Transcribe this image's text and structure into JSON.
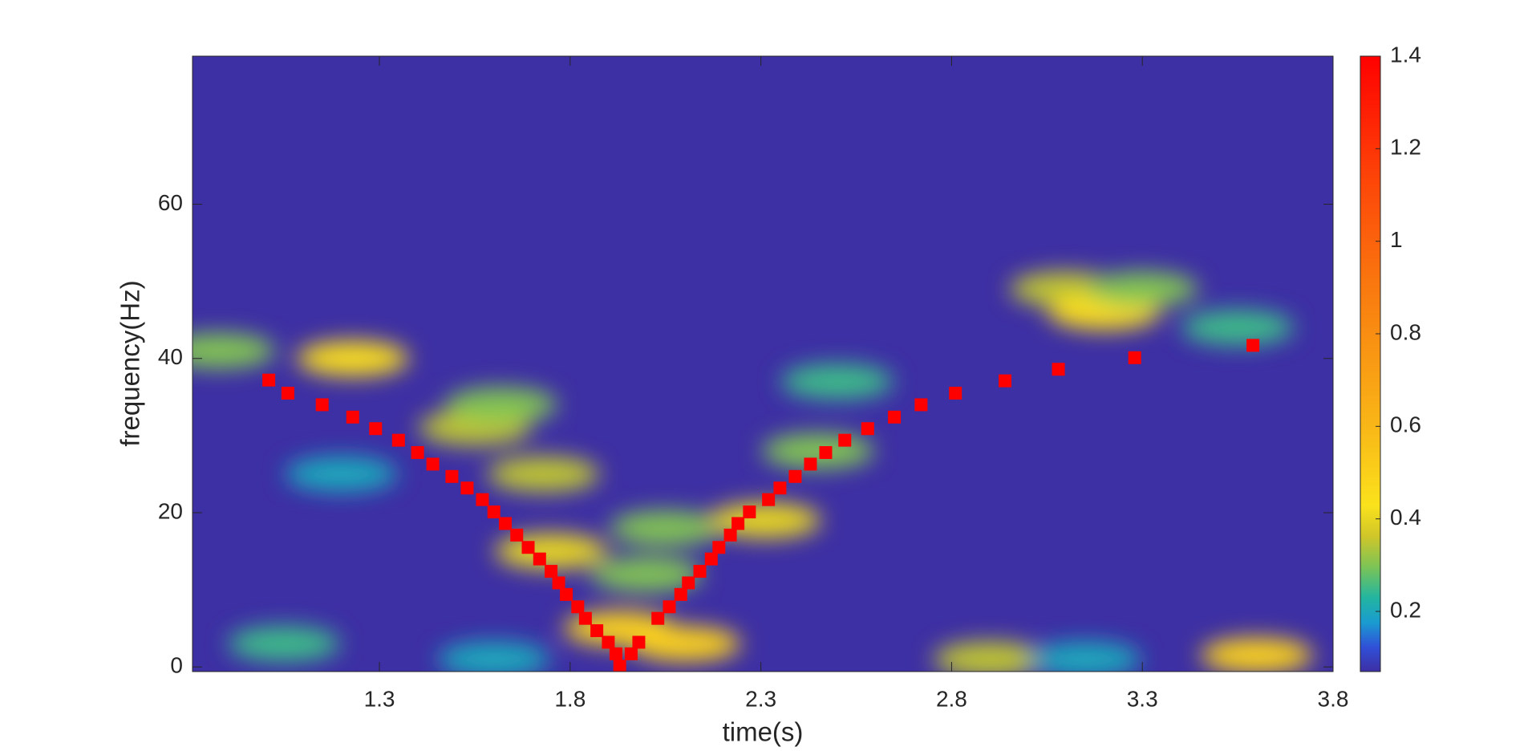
{
  "chart_data": {
    "type": "heatmap",
    "xlabel": "time(s)",
    "ylabel": "frequency(Hz)",
    "xlim": [
      0.81,
      3.8
    ],
    "ylim": [
      -0.6,
      79.2
    ],
    "xticks": [
      1.3,
      1.8,
      2.3,
      2.8,
      3.3,
      3.8
    ],
    "yticks": [
      0,
      20,
      40,
      60
    ],
    "clim": [
      0.07,
      1.4
    ],
    "cticks": [
      0.2,
      0.4,
      0.6,
      0.8,
      1,
      1.2,
      1.4
    ],
    "background": "#3d2fa4",
    "heatmap": {
      "x": [
        0.88,
        1.23,
        1.55,
        1.62,
        1.73,
        1.75,
        1.93,
        2.1,
        2.05,
        2.0,
        2.31,
        2.45,
        2.5,
        2.9,
        3.1,
        3.2,
        3.3,
        3.55,
        3.6,
        3.15,
        1.2,
        1.05,
        1.6
      ],
      "y": [
        41,
        40,
        31,
        34,
        25,
        15,
        5,
        3,
        18,
        12,
        19,
        28,
        37,
        1,
        49,
        46,
        49,
        44,
        1.5,
        1,
        25,
        3,
        1
      ],
      "values": [
        0.3,
        0.45,
        0.35,
        0.3,
        0.35,
        0.4,
        0.5,
        0.5,
        0.3,
        0.3,
        0.4,
        0.3,
        0.25,
        0.35,
        0.35,
        0.45,
        0.3,
        0.25,
        0.5,
        0.2,
        0.2,
        0.25,
        0.2
      ]
    },
    "ridge": {
      "color": "#ff0000",
      "x": [
        1.01,
        1.06,
        1.15,
        1.23,
        1.29,
        1.35,
        1.4,
        1.44,
        1.49,
        1.53,
        1.57,
        1.6,
        1.63,
        1.66,
        1.69,
        1.72,
        1.75,
        1.77,
        1.79,
        1.82,
        1.84,
        1.87,
        1.9,
        1.92,
        1.93,
        1.96,
        1.98,
        2.03,
        2.06,
        2.09,
        2.11,
        2.14,
        2.17,
        2.19,
        2.22,
        2.24,
        2.27,
        2.32,
        2.35,
        2.39,
        2.43,
        2.47,
        2.52,
        2.58,
        2.65,
        2.72,
        2.81,
        2.94,
        3.08,
        3.28,
        3.59
      ],
      "values": [
        37.2,
        35.5,
        34,
        32.4,
        30.9,
        29.4,
        27.8,
        26.3,
        24.7,
        23.2,
        21.7,
        20.1,
        18.6,
        17.1,
        15.5,
        14,
        12.4,
        10.9,
        9.4,
        7.8,
        6.3,
        4.7,
        3.2,
        1.7,
        0.1,
        1.7,
        3.2,
        6.3,
        7.8,
        9.4,
        10.9,
        12.4,
        14,
        15.5,
        17.1,
        18.6,
        20.1,
        21.7,
        23.2,
        24.7,
        26.3,
        27.8,
        29.4,
        30.9,
        32.4,
        34,
        35.5,
        37.1,
        38.6,
        40.1,
        41.7
      ]
    }
  }
}
